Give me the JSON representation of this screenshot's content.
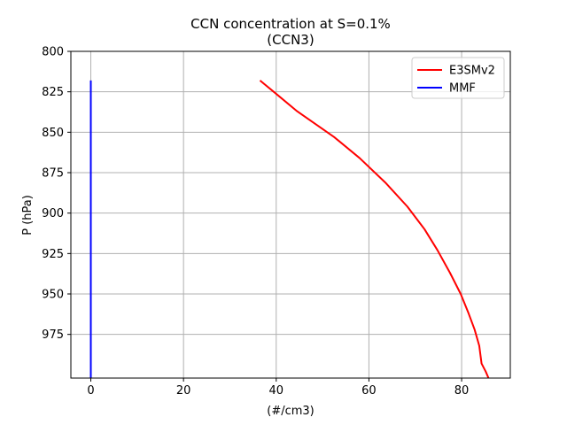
{
  "chart_data": {
    "type": "line",
    "title": "CCN concentration at S=0.1%",
    "subtitle": "(CCN3)",
    "xlabel": "(#/cm3)",
    "ylabel": "P (hPa)",
    "xlim": [
      -4.3,
      90.5
    ],
    "ylim": [
      1002,
      800
    ],
    "y_inverted": true,
    "grid": true,
    "legend_position": "top-right",
    "xticks": [
      0,
      20,
      40,
      60,
      80
    ],
    "yticks": [
      800,
      825,
      850,
      875,
      900,
      925,
      950,
      975
    ],
    "series": [
      {
        "name": "E3SMv2",
        "color": "#ff0000",
        "points": [
          [
            36.5,
            818
          ],
          [
            40.3,
            827
          ],
          [
            44.5,
            837
          ],
          [
            52.5,
            853
          ],
          [
            58.0,
            866
          ],
          [
            63.5,
            881
          ],
          [
            68.3,
            896
          ],
          [
            72.0,
            910
          ],
          [
            74.8,
            923
          ],
          [
            77.5,
            937
          ],
          [
            79.8,
            950
          ],
          [
            81.5,
            962
          ],
          [
            82.8,
            972
          ],
          [
            83.8,
            982
          ],
          [
            84.3,
            993
          ],
          [
            85.2,
            998
          ],
          [
            85.8,
            1002
          ]
        ]
      },
      {
        "name": "MMF",
        "color": "#0000ff",
        "points": [
          [
            0,
            818
          ],
          [
            0,
            1002
          ]
        ]
      }
    ]
  }
}
